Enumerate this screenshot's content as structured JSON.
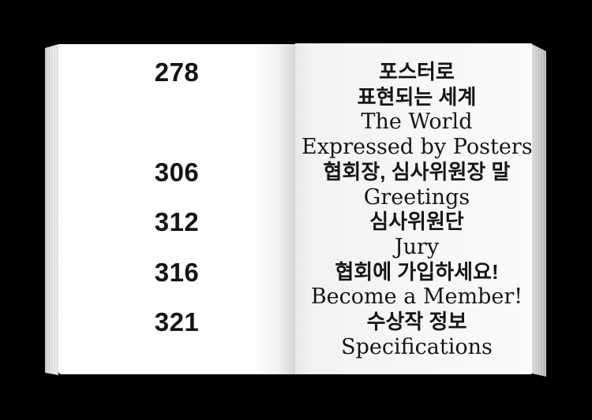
{
  "document": {
    "kind": "book-table-of-contents-spread",
    "colors": {
      "background": "#000000",
      "left_page": "#ffffff",
      "right_page_tint": "#f4f4f4",
      "page_edge": "#d9d9d9",
      "text": "#161616"
    }
  },
  "toc": {
    "entries": [
      {
        "page": "278",
        "lines": [
          "포스터로",
          "표현되는 세계",
          "The World",
          "Expressed by Posters"
        ]
      },
      {
        "page": "306",
        "lines": [
          "협회장, 심사위원장 말",
          "Greetings"
        ]
      },
      {
        "page": "312",
        "lines": [
          "심사위원단",
          "Jury"
        ]
      },
      {
        "page": "316",
        "lines": [
          "협회에 가입하세요!",
          "Become a Member!"
        ]
      },
      {
        "page": "321",
        "lines": [
          "수상작 정보",
          "Specifications"
        ]
      }
    ]
  }
}
